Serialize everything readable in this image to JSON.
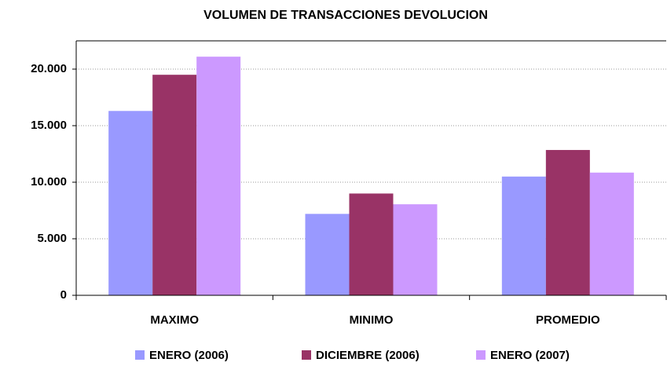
{
  "chart_data": {
    "type": "bar",
    "title": "VOLUMEN DE TRANSACCIONES DEVOLUCION",
    "categories": [
      "MAXIMO",
      "MINIMO",
      "PROMEDIO"
    ],
    "series": [
      {
        "name": "ENERO (2006)",
        "color": "#9999ff",
        "values": [
          16300,
          7200,
          10500
        ]
      },
      {
        "name": "DICIEMBRE (2006)",
        "color": "#993366",
        "values": [
          19500,
          9000,
          12850
        ]
      },
      {
        "name": "ENERO (2007)",
        "color": "#cc99ff",
        "values": [
          21100,
          8050,
          10850
        ]
      }
    ],
    "ylim": [
      0,
      22500
    ],
    "yticks": [
      0,
      {
        "value": 5000,
        "label": "5.000"
      },
      {
        "value": 10000,
        "label": "10.000"
      },
      {
        "value": 15000,
        "label": "15.000"
      },
      {
        "value": 20000,
        "label": "20.000"
      }
    ],
    "grid": true,
    "legend": "bottom"
  }
}
